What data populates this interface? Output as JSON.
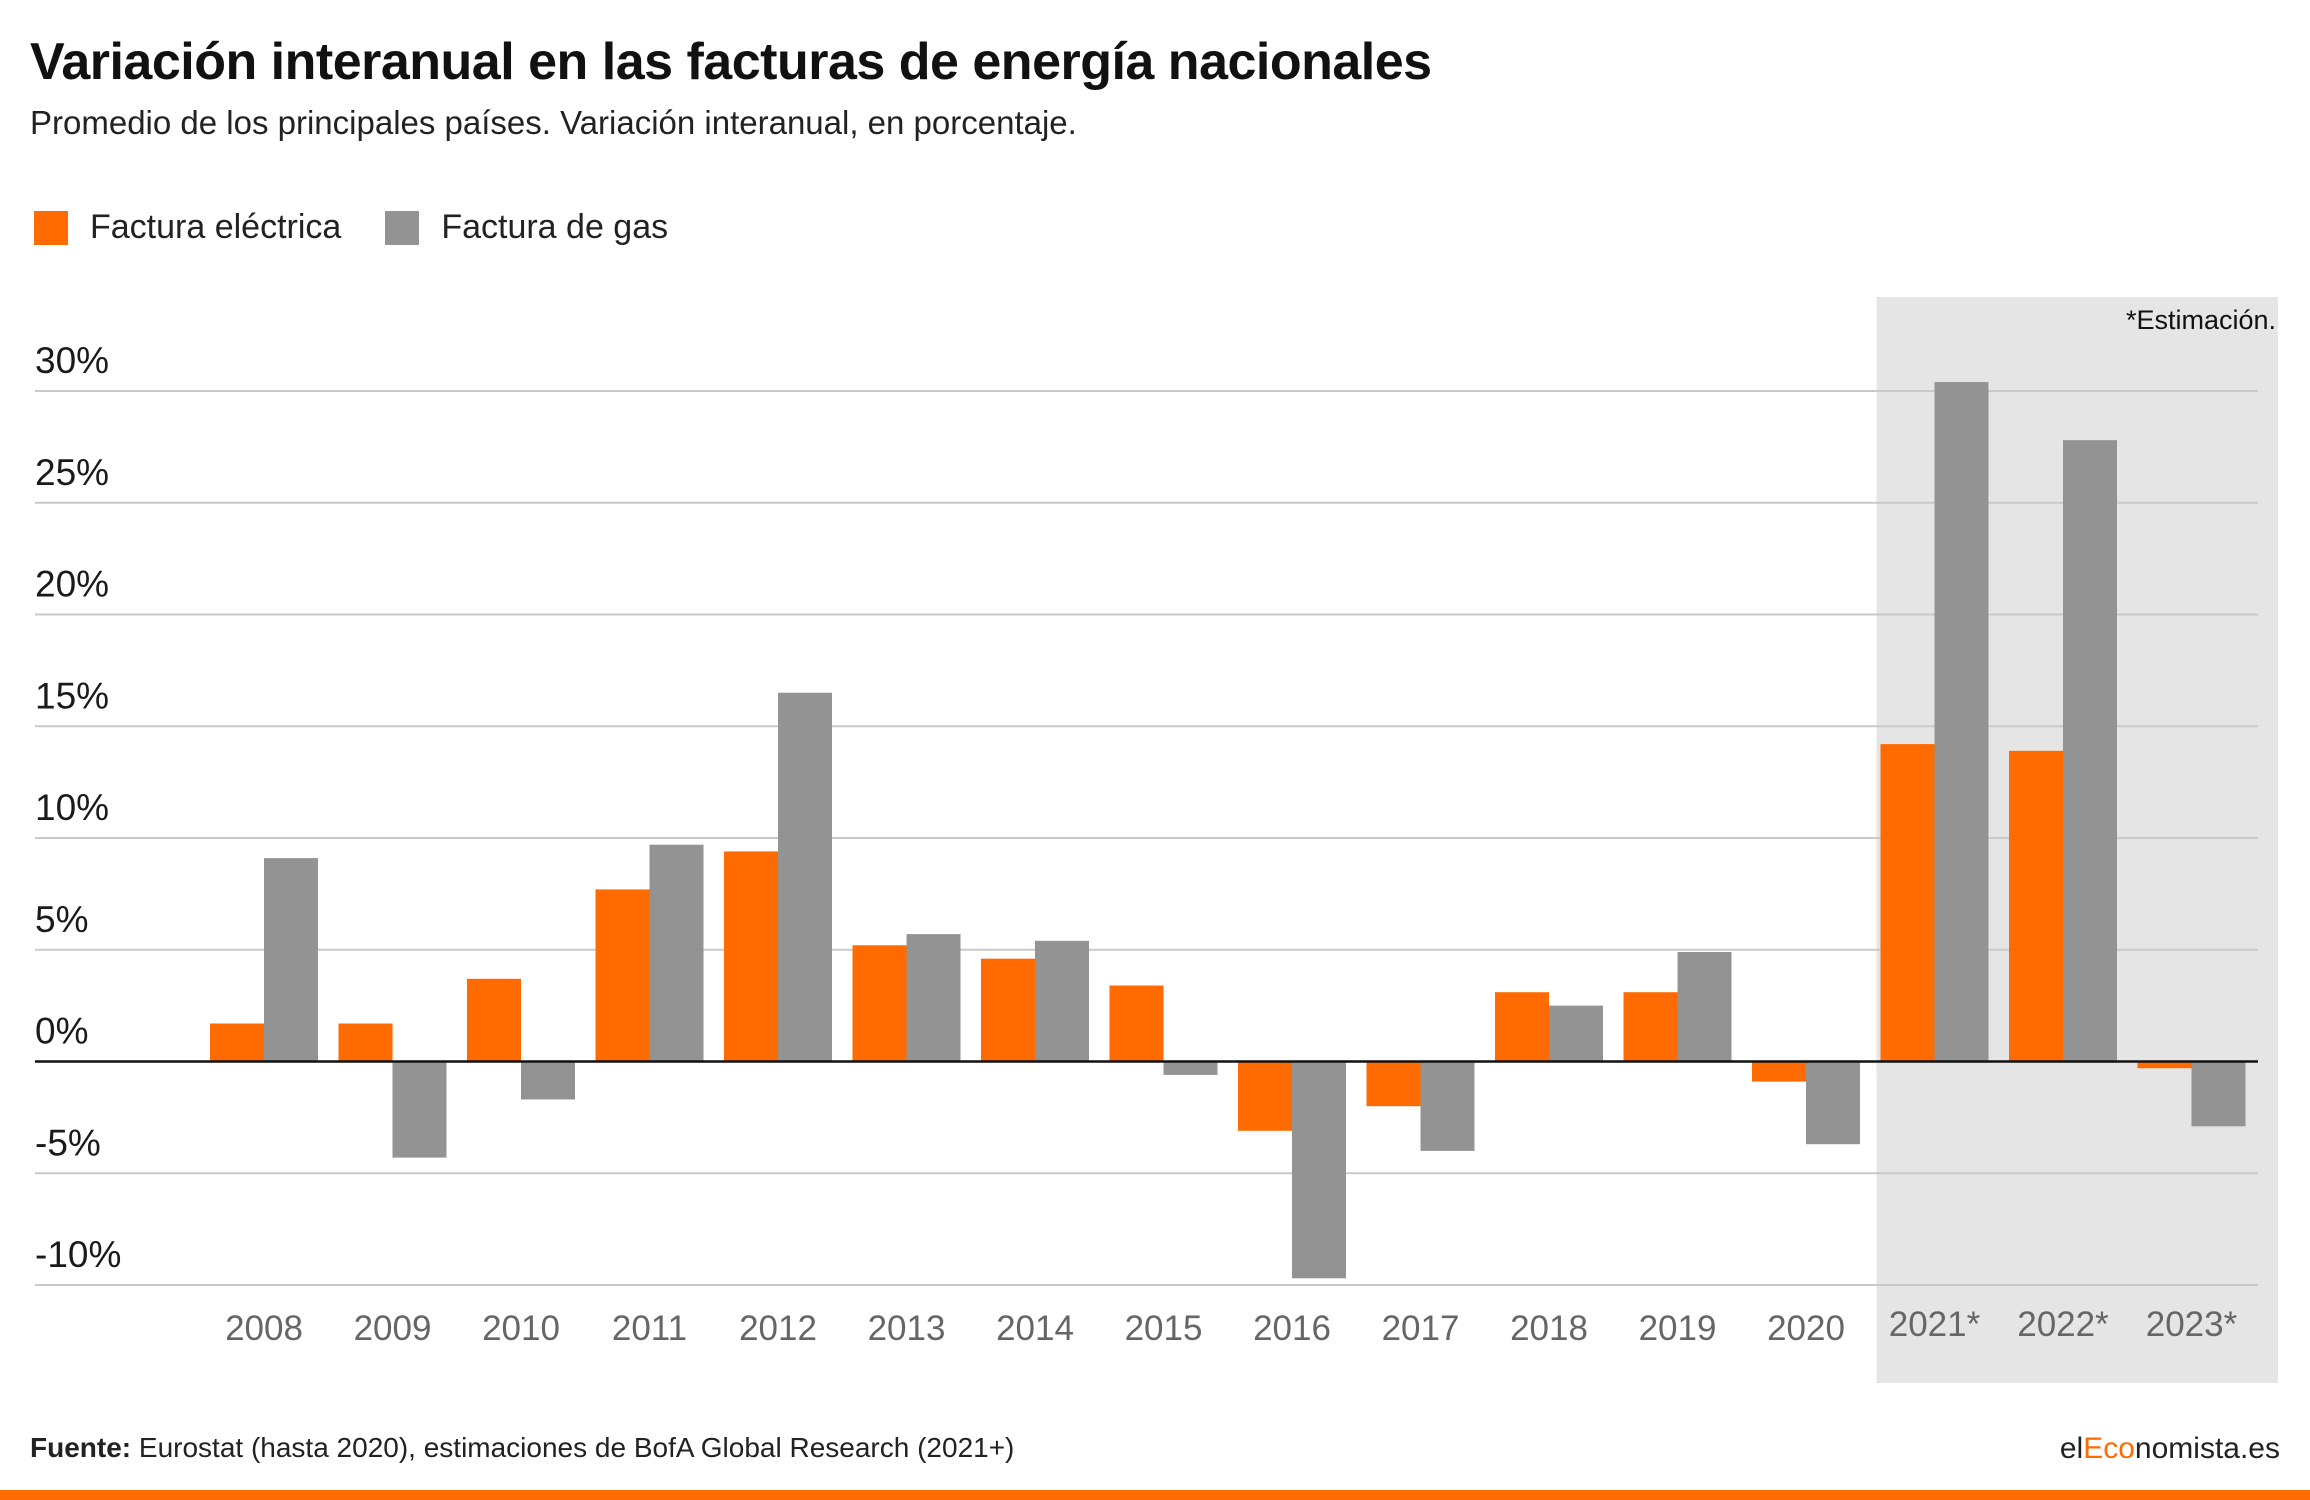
{
  "title": "Variación interanual en las facturas de energía nacionales",
  "subtitle": "Promedio de los principales países. Variación interanual, en porcentaje.",
  "legend": [
    {
      "label": "Factura eléctrica",
      "color": "#ff6b00"
    },
    {
      "label": "Factura de gas",
      "color": "#939393"
    }
  ],
  "estimation_note": "*Estimación.",
  "source_label": "Fuente:",
  "source_text": "Eurostat (hasta 2020), estimaciones de BofA Global Research (2021+)",
  "brand": {
    "prefix": "el",
    "accent": "Eco",
    "suffix": "nomista.es"
  },
  "chart_data": {
    "type": "bar",
    "categories": [
      "2008",
      "2009",
      "2010",
      "2011",
      "2012",
      "2013",
      "2014",
      "2015",
      "2016",
      "2017",
      "2018",
      "2019",
      "2020",
      "2021*",
      "2022*",
      "2023*"
    ],
    "series": [
      {
        "name": "Factura eléctrica",
        "color": "#ff6b00",
        "values": [
          1.7,
          1.7,
          3.7,
          7.7,
          9.4,
          5.2,
          4.6,
          3.4,
          -3.1,
          -2.0,
          3.1,
          3.1,
          -0.9,
          14.2,
          13.9,
          -0.3
        ]
      },
      {
        "name": "Factura de gas",
        "color": "#939393",
        "values": [
          9.1,
          -4.3,
          -1.7,
          9.7,
          16.5,
          5.7,
          5.4,
          -0.6,
          -9.7,
          -4.0,
          2.5,
          4.9,
          -3.7,
          30.4,
          27.8,
          -2.9
        ]
      }
    ],
    "yticks": [
      30,
      25,
      20,
      15,
      10,
      5,
      0,
      -5,
      -10
    ],
    "ytick_labels": [
      "30%",
      "25%",
      "20%",
      "15%",
      "10%",
      "5%",
      "0%",
      "-5%",
      "-10%"
    ],
    "ylim": [
      -10,
      30
    ],
    "grid": true,
    "legend_position": "top-left",
    "highlight_categories": [
      "2021*",
      "2022*",
      "2023*"
    ]
  }
}
